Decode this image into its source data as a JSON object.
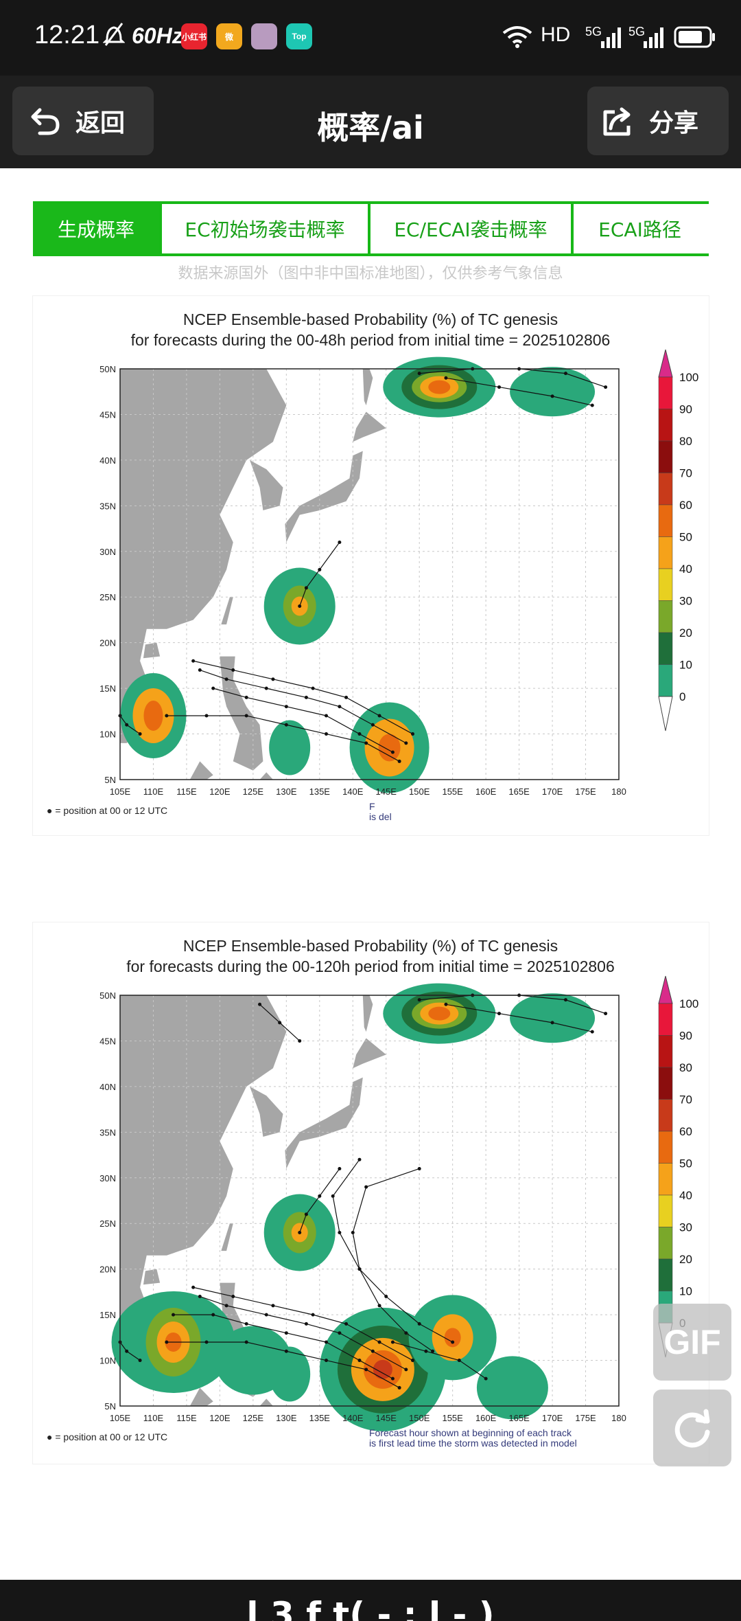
{
  "status": {
    "time": "12:21",
    "refresh_rate": "60Hz",
    "network": "HD",
    "signal_1": "5G",
    "signal_2": "5G",
    "apps": [
      {
        "name": "xiaohongshu-icon",
        "label": "小红书",
        "color": "#e8242f"
      },
      {
        "name": "weibo-icon",
        "label": "微",
        "color": "#f2a81e"
      },
      {
        "name": "avatar-app-icon",
        "label": "",
        "color": "#b89bbf"
      },
      {
        "name": "top-app-icon",
        "label": "Top",
        "color": "#1ec7b3"
      }
    ]
  },
  "appbar": {
    "back_label": "返回",
    "title": "概率/ai",
    "share_label": "分享"
  },
  "tabs": [
    {
      "label": "生成概率",
      "active": true
    },
    {
      "label": "EC初始场袭击概率",
      "active": false
    },
    {
      "label": "EC/ECAI袭击概率",
      "active": false
    },
    {
      "label": "ECAI路径",
      "active": false
    }
  ],
  "disclaimer": "数据来源国外（图中非中国标准地图），仅供参考气象信息",
  "maps": [
    {
      "title_line1": "NCEP Ensemble-based Probability (%) of TC genesis",
      "title_line2": "for forecasts during the 00-48h period from initial time = 2025102806",
      "legend_note": "● = position at 00 or 12 UTC",
      "footnote_line1": "F",
      "footnote_line2": "is                                                                  del"
    },
    {
      "title_line1": "NCEP Ensemble-based Probability (%) of TC genesis",
      "title_line2": "for forecasts during the 00-120h period from initial time = 2025102806",
      "legend_note": "● = position at 00 or 12 UTC",
      "footnote_line1": "Forecast hour shown at beginning of each track",
      "footnote_line2": "is first lead time the storm was detected in model"
    }
  ],
  "axes": {
    "lat_labels": [
      "50N",
      "45N",
      "40N",
      "35N",
      "30N",
      "25N",
      "20N",
      "15N",
      "10N",
      "5N"
    ],
    "lon_labels": [
      "105E",
      "110E",
      "115E",
      "120E",
      "125E",
      "130E",
      "135E",
      "140E",
      "145E",
      "150E",
      "155E",
      "160E",
      "165E",
      "170E",
      "175E",
      "180"
    ]
  },
  "colorbar": {
    "labels": [
      "100",
      "90",
      "80",
      "70",
      "60",
      "50",
      "40",
      "30",
      "20",
      "10",
      "0"
    ],
    "colors": [
      "#d92b8a",
      "#e8173a",
      "#b81414",
      "#8b0e0e",
      "#c83a1a",
      "#e86a10",
      "#f5a21a",
      "#e8d020",
      "#7aa82a",
      "#1f6f3a",
      "#2aa87a",
      "#ffffff"
    ]
  },
  "floating": {
    "gif_label": "GIF"
  },
  "bottom_partial": "l  3  f  t(  -  :  l   -  )"
}
